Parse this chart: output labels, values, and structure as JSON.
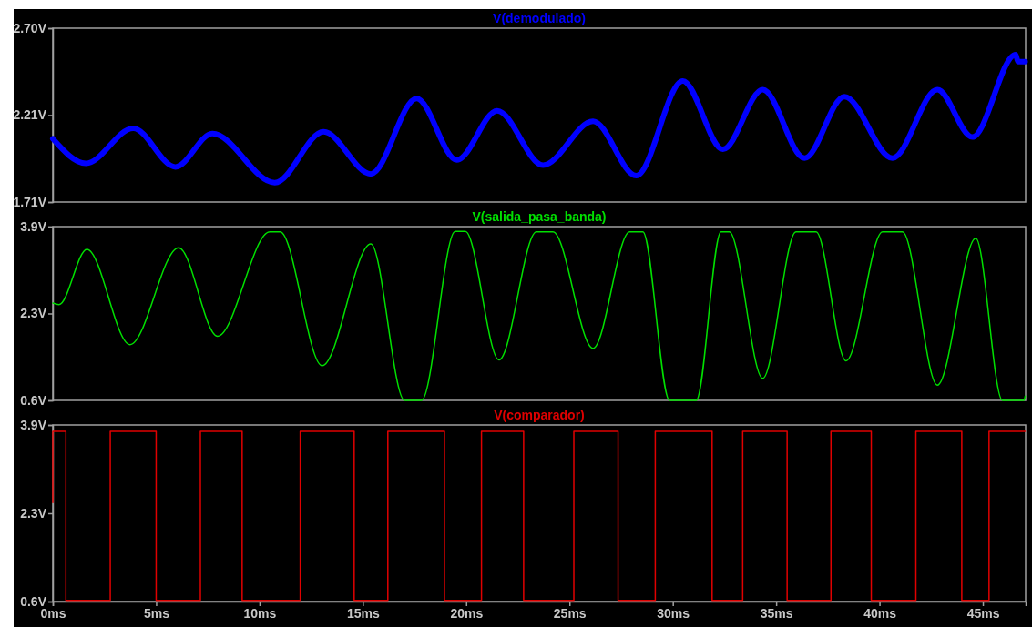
{
  "chart_data": [
    {
      "type": "line",
      "title": "V(demodulado)",
      "xlim": [
        0,
        47.07
      ],
      "ylim": [
        1.71,
        2.7
      ],
      "yticks": [
        {
          "value": 1.71,
          "label": "1.71V"
        },
        {
          "value": 2.205,
          "label": "2.21V"
        },
        {
          "value": 2.7,
          "label": "2.70V"
        }
      ],
      "tick_labels": "y",
      "grid": false,
      "series": [
        {
          "color": "#0000ff",
          "x": [
            0,
            1.6,
            3.89,
            5.93,
            7.72,
            10.74,
            13.1,
            15.39,
            17.6,
            19.55,
            21.5,
            23.72,
            26.14,
            28.23,
            30.48,
            32.42,
            34.35,
            36.37,
            38.3,
            40.63,
            42.8,
            44.49,
            46.59,
            46.7,
            47.05
          ],
          "values": [
            2.07,
            1.93,
            2.13,
            1.91,
            2.1,
            1.82,
            2.11,
            1.87,
            2.3,
            1.95,
            2.23,
            1.92,
            2.17,
            1.86,
            2.4,
            2.01,
            2.35,
            1.96,
            2.31,
            1.96,
            2.35,
            2.08,
            2.55,
            2.51,
            2.51
          ]
        }
      ]
    },
    {
      "type": "line",
      "title": "V(salida_pasa_banda)",
      "xlim": [
        0,
        47.07
      ],
      "ylim": [
        0.6,
        3.9
      ],
      "yticks": [
        {
          "value": 0.6,
          "label": "0.6V"
        },
        {
          "value": 2.25,
          "label": "2.3V"
        },
        {
          "value": 3.9,
          "label": "3.9V"
        }
      ],
      "tick_labels": "y",
      "grid": false,
      "series": [
        {
          "color": "#00e000",
          "x": [
            0,
            0.3,
            1.65,
            3.73,
            6.09,
            7.97,
            10.5,
            11.0,
            13.03,
            15.39,
            17.02,
            17.84,
            19.47,
            19.96,
            21.59,
            23.4,
            24.2,
            26.14,
            27.91,
            28.55,
            29.84,
            31.13,
            32.33,
            32.73,
            34.35,
            35.96,
            36.93,
            38.38,
            40.15,
            41.11,
            42.8,
            44.66,
            45.95,
            46.99,
            47.05
          ],
          "values": [
            2.45,
            2.42,
            3.47,
            1.66,
            3.5,
            1.82,
            3.8,
            3.8,
            1.26,
            3.57,
            0.6,
            0.6,
            3.81,
            3.81,
            1.37,
            3.8,
            3.8,
            1.59,
            3.8,
            3.8,
            0.6,
            0.6,
            3.8,
            3.8,
            1.02,
            3.8,
            3.8,
            1.35,
            3.8,
            3.8,
            0.89,
            3.68,
            0.6,
            0.6,
            0.68
          ]
        }
      ]
    },
    {
      "type": "line",
      "title": "V(comparador)",
      "xlim": [
        0,
        47.07
      ],
      "ylim": [
        0.6,
        3.9
      ],
      "xticks": [
        {
          "value": 0,
          "label": "0ms"
        },
        {
          "value": 5,
          "label": "5ms"
        },
        {
          "value": 10,
          "label": "10ms"
        },
        {
          "value": 15,
          "label": "15ms"
        },
        {
          "value": 20,
          "label": "20ms"
        },
        {
          "value": 25,
          "label": "25ms"
        },
        {
          "value": 30,
          "label": "30ms"
        },
        {
          "value": 35,
          "label": "35ms"
        },
        {
          "value": 40,
          "label": "40ms"
        },
        {
          "value": 45,
          "label": "45ms"
        }
      ],
      "yticks": [
        {
          "value": 0.6,
          "label": "0.6V"
        },
        {
          "value": 2.25,
          "label": "2.3V"
        },
        {
          "value": 3.9,
          "label": "3.9V"
        }
      ],
      "grid": false,
      "series": [
        {
          "color": "#e00000",
          "x": [
            0,
            0,
            0.63,
            0.63,
            2.78,
            2.78,
            5.0,
            5.0,
            7.14,
            7.14,
            9.16,
            9.16,
            11.97,
            11.97,
            14.58,
            14.58,
            16.21,
            16.21,
            18.95,
            18.95,
            20.74,
            20.74,
            22.78,
            22.78,
            25.21,
            25.21,
            27.35,
            27.35,
            29.15,
            29.15,
            31.9,
            31.9,
            33.38,
            33.38,
            35.53,
            35.53,
            37.65,
            37.65,
            39.6,
            39.6,
            41.76,
            41.76,
            43.98,
            43.98,
            45.3,
            45.3,
            47.05
          ],
          "values": [
            2.45,
            3.78,
            3.78,
            0.62,
            0.62,
            3.78,
            3.78,
            0.62,
            0.62,
            3.78,
            3.78,
            0.62,
            0.62,
            3.78,
            3.78,
            0.62,
            0.62,
            3.78,
            3.78,
            0.62,
            0.62,
            3.78,
            3.78,
            0.62,
            0.62,
            3.78,
            3.78,
            0.62,
            0.62,
            3.78,
            3.78,
            0.62,
            0.62,
            3.78,
            3.78,
            0.62,
            0.62,
            3.78,
            3.78,
            0.62,
            0.62,
            3.78,
            3.78,
            0.62,
            0.62,
            3.78,
            3.78
          ]
        }
      ]
    }
  ]
}
